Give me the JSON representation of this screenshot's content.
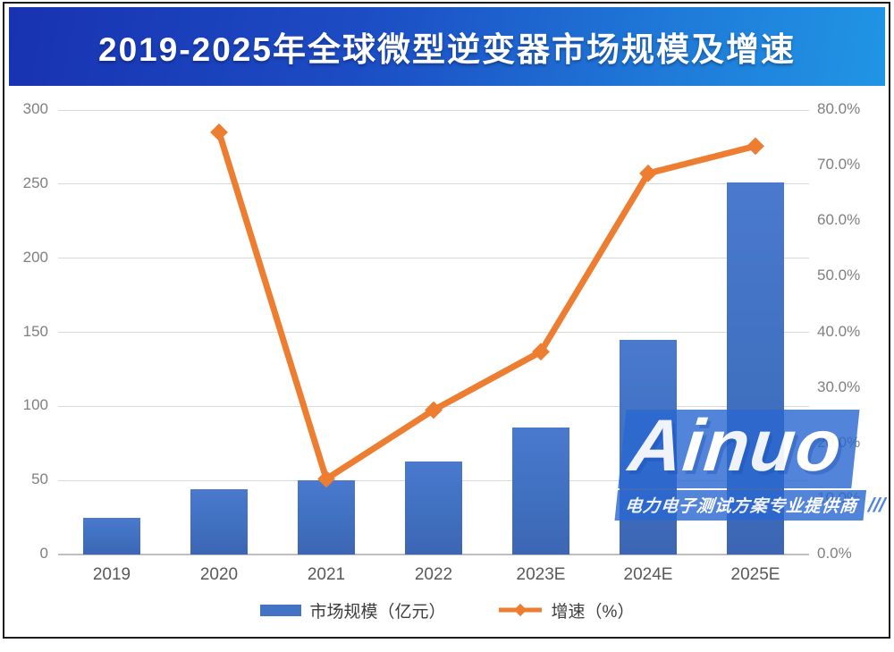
{
  "page": {
    "title_banner": "2019-2025年全球微型逆变器市场规模及增速"
  },
  "legend": {
    "bar_label": "市场规模（亿元）",
    "line_label": "增速（%）"
  },
  "watermark": {
    "brand": "Ainuo",
    "slogan": "电力电子测试方案专业提供商",
    "slashes": "///"
  },
  "colors": {
    "bar_blue": "#4472C4",
    "line_orange": "#ED7D31",
    "banner_left": "#1832B2",
    "banner_right": "#2095E5",
    "grid": "#D9D9D9",
    "axis_text": "#7F7F7F",
    "x_label_text": "#595959"
  },
  "chart_data": {
    "type": "bar",
    "subtype": "combo-bar-line-dual-axis",
    "title": "2019-2025年全球微型逆变器市场规模及增速",
    "categories": [
      "2019",
      "2020",
      "2021",
      "2022",
      "2023E",
      "2024E",
      "2025E"
    ],
    "series": [
      {
        "name": "市场规模（亿元）",
        "type": "bar",
        "axis": "left",
        "values": [
          25,
          44,
          50,
          63,
          86,
          145,
          251
        ]
      },
      {
        "name": "增速（%）",
        "type": "line",
        "axis": "right",
        "values": [
          null,
          76.0,
          13.6,
          26.0,
          36.5,
          68.6,
          73.5
        ]
      }
    ],
    "left_axis": {
      "label": "",
      "min": 0,
      "max": 300,
      "step": 50,
      "ticks": [
        "0",
        "50",
        "100",
        "150",
        "200",
        "250",
        "300"
      ]
    },
    "right_axis": {
      "label": "",
      "min": 0,
      "max": 80,
      "step": 10,
      "ticks": [
        "0.0%",
        "10.0%",
        "20.0%",
        "30.0%",
        "40.0%",
        "50.0%",
        "60.0%",
        "70.0%",
        "80.0%"
      ]
    },
    "grid": true,
    "legend_position": "bottom"
  }
}
